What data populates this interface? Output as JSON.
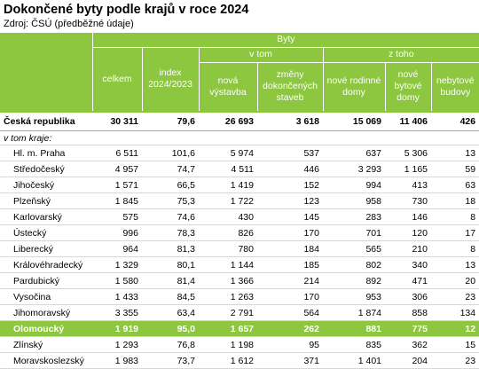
{
  "title": "Dokončené byty podle krajů v roce 2024",
  "source": "Zdroj: ČSÚ (předběžné údaje)",
  "header": {
    "group": "Byty",
    "vtom": "v tom",
    "ztoho": "z toho",
    "cols": [
      "celkem",
      "index 2024/2023",
      "nová výstavba",
      "změny dokončených staveb",
      "nové rodinné domy",
      "nové bytové domy",
      "nebytové budovy"
    ]
  },
  "total": {
    "name": "Česká republika",
    "values": [
      "30 311",
      "79,6",
      "26 693",
      "3 618",
      "15 069",
      "11 406",
      "426"
    ]
  },
  "subheading": "v tom kraje:",
  "regions": [
    {
      "name": "Hl. m. Praha",
      "values": [
        "6 511",
        "101,6",
        "5 974",
        "537",
        "637",
        "5 306",
        "13"
      ]
    },
    {
      "name": "Středočeský",
      "values": [
        "4 957",
        "74,7",
        "4 511",
        "446",
        "3 293",
        "1 165",
        "59"
      ]
    },
    {
      "name": "Jihočeský",
      "values": [
        "1 571",
        "66,5",
        "1 419",
        "152",
        "994",
        "413",
        "63"
      ]
    },
    {
      "name": "Plzeňský",
      "values": [
        "1 845",
        "75,3",
        "1 722",
        "123",
        "958",
        "730",
        "18"
      ]
    },
    {
      "name": "Karlovarský",
      "values": [
        "575",
        "74,6",
        "430",
        "145",
        "283",
        "146",
        "8"
      ]
    },
    {
      "name": "Ústecký",
      "values": [
        "996",
        "78,3",
        "826",
        "170",
        "701",
        "120",
        "17"
      ]
    },
    {
      "name": "Liberecký",
      "values": [
        "964",
        "81,3",
        "780",
        "184",
        "565",
        "210",
        "8"
      ]
    },
    {
      "name": "Královéhradecký",
      "values": [
        "1 329",
        "80,1",
        "1 144",
        "185",
        "802",
        "340",
        "13"
      ]
    },
    {
      "name": "Pardubický",
      "values": [
        "1 580",
        "81,4",
        "1 366",
        "214",
        "892",
        "471",
        "20"
      ]
    },
    {
      "name": "Vysočina",
      "values": [
        "1 433",
        "84,5",
        "1 263",
        "170",
        "953",
        "306",
        "23"
      ]
    },
    {
      "name": "Jihomoravský",
      "values": [
        "3 355",
        "63,4",
        "2 791",
        "564",
        "1 874",
        "858",
        "134"
      ]
    },
    {
      "name": "Olomoucký",
      "values": [
        "1 919",
        "95,0",
        "1 657",
        "262",
        "881",
        "775",
        "12"
      ],
      "highlight": true
    },
    {
      "name": "Zlínský",
      "values": [
        "1 293",
        "76,8",
        "1 198",
        "95",
        "835",
        "362",
        "15"
      ]
    },
    {
      "name": "Moravskoslezský",
      "values": [
        "1 983",
        "73,7",
        "1 612",
        "371",
        "1 401",
        "204",
        "23"
      ]
    }
  ],
  "colors": {
    "accent": "#8dc63f",
    "rowline": "#cfe6a6"
  }
}
